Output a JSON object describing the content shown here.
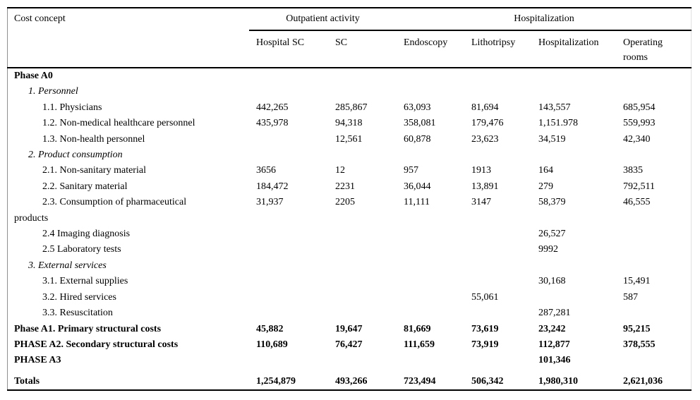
{
  "table": {
    "corner_header": "Cost concept",
    "groups": [
      {
        "label": "Outpatient activity",
        "span": 2
      },
      {
        "label": "Hospitalization",
        "span": 4
      }
    ],
    "columns": [
      "Hospital SC",
      "SC",
      "Endoscopy",
      "Lithotripsy",
      "Hospitalization",
      "Operating\nrooms"
    ],
    "rows": [
      {
        "label": "Phase A0",
        "style": "bold",
        "indent": 0,
        "values": [
          "",
          "",
          "",
          "",
          "",
          ""
        ]
      },
      {
        "label": "1. Personnel",
        "style": "italic",
        "indent": 1,
        "values": [
          "",
          "",
          "",
          "",
          "",
          ""
        ]
      },
      {
        "label": "1.1. Physicians",
        "style": "normal",
        "indent": 2,
        "values": [
          "442,265",
          "285,867",
          "63,093",
          "81,694",
          "143,557",
          "685,954"
        ]
      },
      {
        "label": "1.2. Non-medical healthcare personnel",
        "style": "normal",
        "indent": 2,
        "values": [
          "435,978",
          "94,318",
          "358,081",
          "179,476",
          "1,151.978",
          "559,993"
        ]
      },
      {
        "label": "1.3. Non-health personnel",
        "style": "normal",
        "indent": 2,
        "values": [
          "",
          "12,561",
          "60,878",
          "23,623",
          "34,519",
          "42,340"
        ]
      },
      {
        "label": "2. Product consumption",
        "style": "italic",
        "indent": 1,
        "values": [
          "",
          "",
          "",
          "",
          "",
          ""
        ]
      },
      {
        "label": "2.1. Non-sanitary material",
        "style": "normal",
        "indent": 2,
        "values": [
          "3656",
          "12",
          "957",
          "1913",
          "164",
          "3835"
        ]
      },
      {
        "label": "2.2. Sanitary material",
        "style": "normal",
        "indent": 2,
        "values": [
          "184,472",
          "2231",
          "36,044",
          "13,891",
          "279",
          "792,511"
        ]
      },
      {
        "label": "2.3. Consumption of pharmaceutical\nproducts",
        "style": "normal",
        "indent": 2,
        "values": [
          "31,937",
          "2205",
          "11,111",
          "3147",
          "58,379",
          "46,555"
        ]
      },
      {
        "label": "2.4 Imaging diagnosis",
        "style": "normal",
        "indent": 2,
        "values": [
          "",
          "",
          "",
          "",
          "26,527",
          ""
        ]
      },
      {
        "label": "2.5 Laboratory tests",
        "style": "normal",
        "indent": 2,
        "values": [
          "",
          "",
          "",
          "",
          "9992",
          ""
        ]
      },
      {
        "label": "3. External services",
        "style": "italic",
        "indent": 1,
        "values": [
          "",
          "",
          "",
          "",
          "",
          ""
        ]
      },
      {
        "label": "3.1. External supplies",
        "style": "normal",
        "indent": 2,
        "values": [
          "",
          "",
          "",
          "",
          "30,168",
          "15,491"
        ]
      },
      {
        "label": "3.2. Hired services",
        "style": "normal",
        "indent": 2,
        "values": [
          "",
          "",
          "",
          "55,061",
          "",
          "587"
        ]
      },
      {
        "label": "3.3. Resuscitation",
        "style": "normal",
        "indent": 2,
        "values": [
          "",
          "",
          "",
          "",
          "287,281",
          ""
        ]
      },
      {
        "label": "Phase A1. Primary structural costs",
        "style": "bold",
        "indent": 0,
        "values": [
          "45,882",
          "19,647",
          "81,669",
          "73,619",
          "23,242",
          "95,215"
        ]
      },
      {
        "label": "PHASE A2. Secondary structural costs",
        "style": "bold",
        "indent": 0,
        "values": [
          "110,689",
          "76,427",
          "111,659",
          "73,919",
          "112,877",
          "378,555"
        ]
      },
      {
        "label": "PHASE A3",
        "style": "bold",
        "indent": 0,
        "values": [
          "",
          "",
          "",
          "",
          "101,346",
          ""
        ]
      },
      {
        "label": "Totals",
        "style": "bold",
        "indent": 0,
        "extra_space": true,
        "values": [
          "1,254,879",
          "493,266",
          "723,494",
          "506,342",
          "1,980,310",
          "2,621,036"
        ]
      }
    ]
  }
}
